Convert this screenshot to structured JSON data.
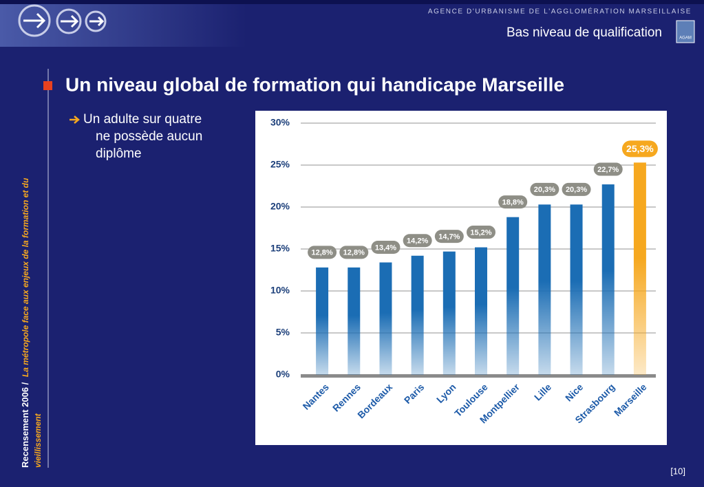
{
  "slide": {
    "agency": "AGENCE D'URBANISME DE L'AGGLOMÉRATION MARSEILLAISE",
    "section": "Bas niveau de qualification",
    "logo": "AGAM",
    "title": "Un niveau global de formation qui handicape Marseille",
    "bullet": [
      "Un adulte sur quatre",
      "ne possède aucun",
      "diplôme"
    ],
    "sidebar_bold": "Recensement 2006 /",
    "sidebar_rest": [
      "La métropole face aux enjeux de la formation et du",
      "vieillissement"
    ],
    "page": "[10]"
  },
  "chart_data": {
    "type": "bar",
    "categories": [
      "Nantes",
      "Rennes",
      "Bordeaux",
      "Paris",
      "Lyon",
      "Toulouse",
      "Montpellier",
      "Lille",
      "Nice",
      "Strasbourg",
      "Marseille"
    ],
    "values": [
      12.8,
      12.8,
      13.4,
      14.2,
      14.7,
      15.2,
      18.8,
      20.3,
      20.3,
      22.7,
      25.3
    ],
    "value_labels": [
      "12,8%",
      "12,8%",
      "13,4%",
      "14,2%",
      "14,7%",
      "15,2%",
      "18,8%",
      "20,3%",
      "20,3%",
      "22,7%",
      "25,3%"
    ],
    "colors": [
      "#1b6db4",
      "#1b6db4",
      "#1b6db4",
      "#1b6db4",
      "#1b6db4",
      "#1b6db4",
      "#1b6db4",
      "#1b6db4",
      "#1b6db4",
      "#1b6db4",
      "#f6a81f"
    ],
    "ylim": [
      0,
      30
    ],
    "yticks": [
      {
        "value": 0,
        "label": "0%"
      },
      {
        "value": 5,
        "label": "5%"
      },
      {
        "value": 10,
        "label": "10%"
      },
      {
        "value": 15,
        "label": "15%"
      },
      {
        "value": 20,
        "label": "20%"
      },
      {
        "value": 25,
        "label": "25%"
      },
      {
        "value": 30,
        "label": "30%"
      }
    ],
    "grid": true
  }
}
